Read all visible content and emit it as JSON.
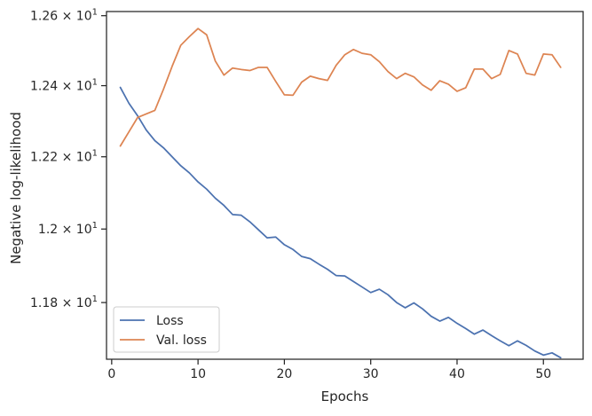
{
  "chart_data": {
    "type": "line",
    "title": "",
    "xlabel": "Epochs",
    "ylabel": "Negative log-likelihood",
    "xlim": [
      -0.6,
      54.6
    ],
    "ylim": [
      11.648,
      12.612
    ],
    "yscale": "log",
    "grid": false,
    "legend_position": "lower-left",
    "xticks": [
      {
        "value": 0,
        "label": "0"
      },
      {
        "value": 10,
        "label": "10"
      },
      {
        "value": 20,
        "label": "20"
      },
      {
        "value": 30,
        "label": "30"
      },
      {
        "value": 40,
        "label": "40"
      },
      {
        "value": 50,
        "label": "50"
      }
    ],
    "yticks": [
      {
        "value": 11.8,
        "mantissa": "1.18",
        "exp": "1"
      },
      {
        "value": 12.0,
        "mantissa": "1.2",
        "exp": "1"
      },
      {
        "value": 12.2,
        "mantissa": "1.22",
        "exp": "1"
      },
      {
        "value": 12.4,
        "mantissa": "1.24",
        "exp": "1"
      },
      {
        "value": 12.6,
        "mantissa": "1.26",
        "exp": "1"
      }
    ],
    "tick_times": "×",
    "tick_base": "10",
    "x": [
      1,
      2,
      3,
      4,
      5,
      6,
      7,
      8,
      9,
      10,
      11,
      12,
      13,
      14,
      15,
      16,
      17,
      18,
      19,
      20,
      21,
      22,
      23,
      24,
      25,
      26,
      27,
      28,
      29,
      30,
      31,
      32,
      33,
      34,
      35,
      36,
      37,
      38,
      39,
      40,
      41,
      42,
      43,
      44,
      45,
      46,
      47,
      48,
      49,
      50,
      51,
      52
    ],
    "series": [
      {
        "name": "Loss",
        "color": "#4c72b0",
        "values": [
          12.395,
          12.35,
          12.315,
          12.275,
          12.245,
          12.225,
          12.2,
          12.175,
          12.155,
          12.13,
          12.11,
          12.085,
          12.065,
          12.04,
          12.038,
          12.02,
          11.998,
          11.976,
          11.978,
          11.957,
          11.944,
          11.925,
          11.919,
          11.904,
          11.89,
          11.873,
          11.872,
          11.857,
          11.842,
          11.827,
          11.836,
          11.821,
          11.8,
          11.786,
          11.799,
          11.783,
          11.763,
          11.75,
          11.76,
          11.744,
          11.73,
          11.715,
          11.726,
          11.711,
          11.697,
          11.684,
          11.697,
          11.685,
          11.67,
          11.659,
          11.665,
          11.652
        ]
      },
      {
        "name": "Val. loss",
        "color": "#dd8452",
        "values": [
          12.23,
          12.27,
          12.31,
          12.32,
          12.33,
          12.39,
          12.455,
          12.515,
          12.54,
          12.563,
          12.545,
          12.47,
          12.43,
          12.45,
          12.446,
          12.443,
          12.452,
          12.452,
          12.412,
          12.374,
          12.373,
          12.41,
          12.427,
          12.42,
          12.415,
          12.458,
          12.488,
          12.503,
          12.492,
          12.488,
          12.468,
          12.44,
          12.42,
          12.435,
          12.425,
          12.402,
          12.387,
          12.414,
          12.404,
          12.384,
          12.394,
          12.447,
          12.447,
          12.42,
          12.432,
          12.5,
          12.49,
          12.435,
          12.43,
          12.49,
          12.488,
          12.452
        ]
      }
    ]
  }
}
